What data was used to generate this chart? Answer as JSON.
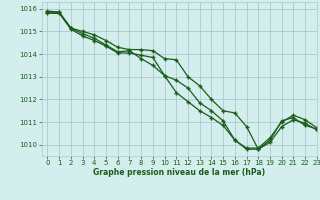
{
  "title": "Graphe pression niveau de la mer (hPa)",
  "bg_color": "#d4eeee",
  "grid_color": "#aacccc",
  "line_color": "#1a5c1a",
  "xlim": [
    -0.5,
    23
  ],
  "ylim": [
    1009.5,
    1016.3
  ],
  "yticks": [
    1010,
    1011,
    1012,
    1013,
    1014,
    1015,
    1016
  ],
  "xticks": [
    0,
    1,
    2,
    3,
    4,
    5,
    6,
    7,
    8,
    9,
    10,
    11,
    12,
    13,
    14,
    15,
    16,
    17,
    18,
    19,
    20,
    21,
    22,
    23
  ],
  "series": [
    [
      1015.9,
      1015.85,
      1015.15,
      1015.0,
      1014.85,
      1014.6,
      1014.3,
      1014.2,
      1014.2,
      1014.15,
      1013.8,
      1013.75,
      1013.0,
      1012.6,
      1012.0,
      1011.5,
      1011.4,
      1010.8,
      1009.8,
      1010.2,
      1011.05,
      1011.2,
      1010.85,
      1010.7
    ],
    [
      1015.85,
      1015.85,
      1015.15,
      1014.9,
      1014.7,
      1014.4,
      1014.1,
      1014.15,
      1013.8,
      1013.5,
      1013.05,
      1012.3,
      1011.9,
      1011.5,
      1011.2,
      1010.85,
      1010.2,
      1009.85,
      1009.85,
      1010.3,
      1011.0,
      1011.3,
      1011.1,
      1010.75
    ],
    [
      1015.8,
      1015.8,
      1015.1,
      1014.8,
      1014.6,
      1014.35,
      1014.05,
      1014.05,
      1013.95,
      1013.85,
      1013.05,
      1012.85,
      1012.5,
      1011.85,
      1011.5,
      1011.05,
      1010.2,
      1009.8,
      1009.8,
      1010.1,
      1010.8,
      1011.1,
      1010.95,
      1010.65
    ]
  ],
  "label_fontsize": 5.5,
  "tick_fontsize": 5.0,
  "ylabel_fontsize": 5.0
}
